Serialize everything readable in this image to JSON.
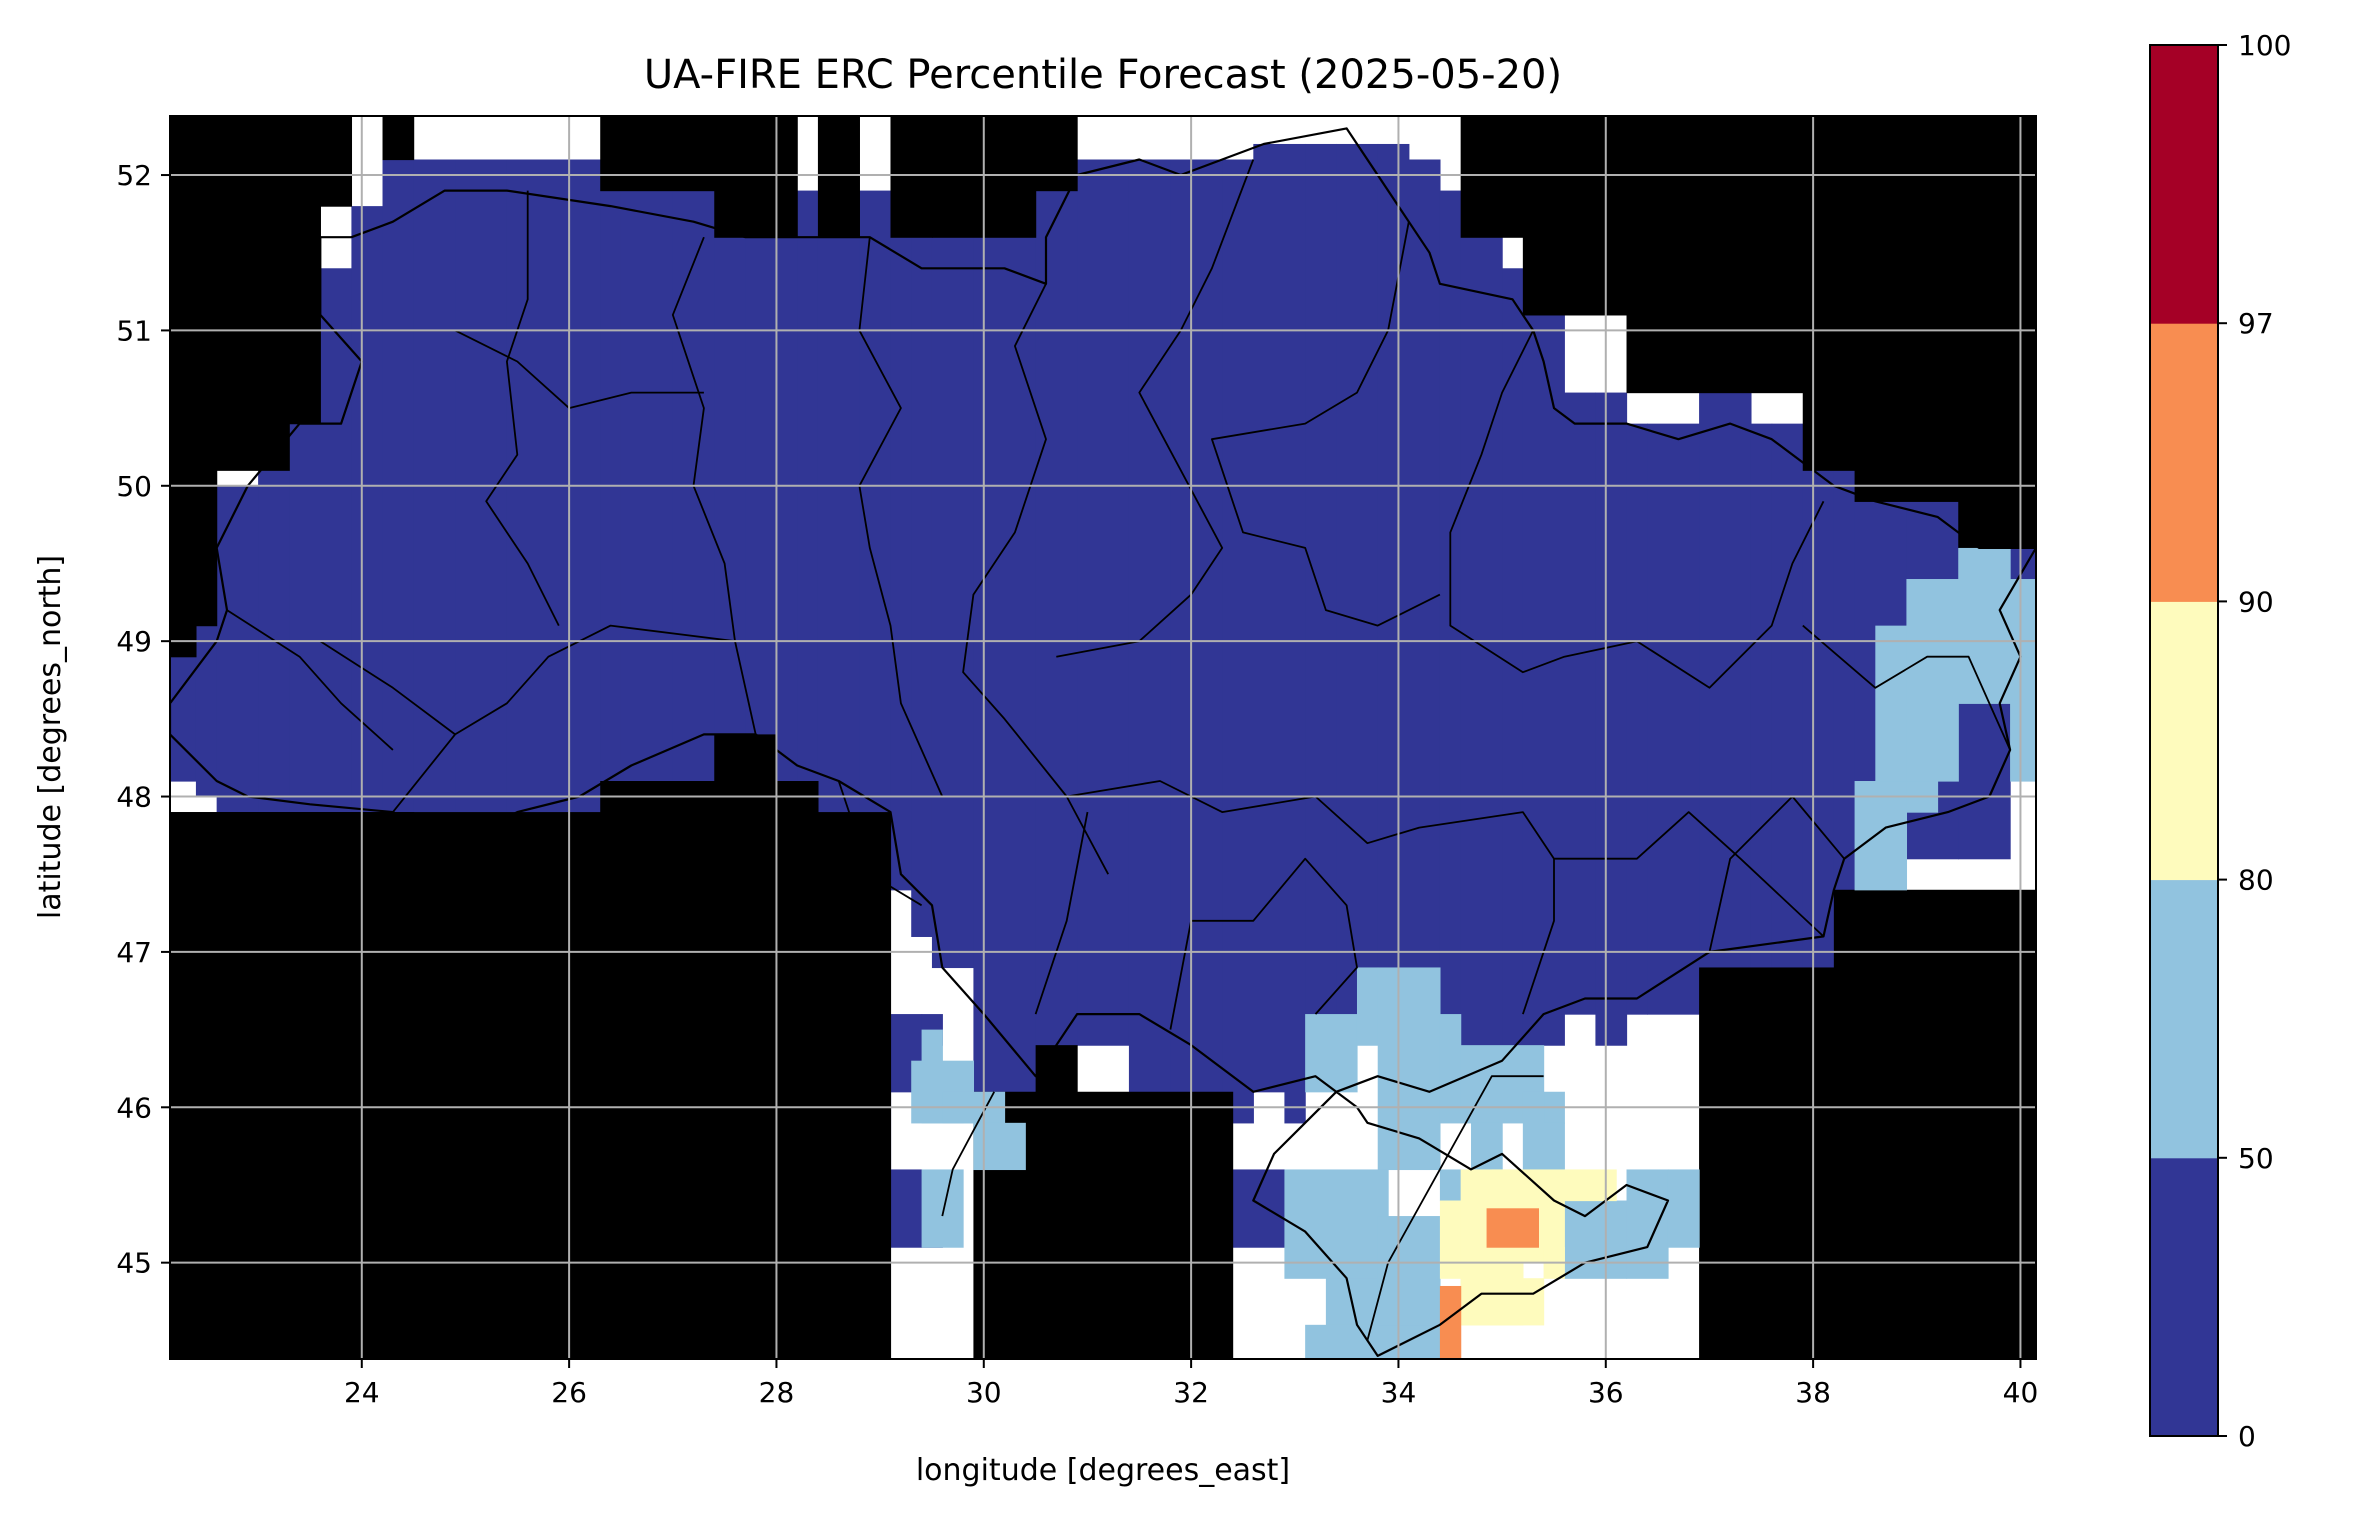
{
  "title": "UA-FIRE ERC Percentile Forecast (2025-05-20)",
  "xlabel": "longitude [degrees_east]",
  "ylabel": "latitude [degrees_north]",
  "x_range": [
    22.15,
    40.15
  ],
  "y_range": [
    44.38,
    52.38
  ],
  "x_ticks": [
    "24",
    "26",
    "28",
    "30",
    "32",
    "34",
    "36",
    "38",
    "40"
  ],
  "y_ticks": [
    "45",
    "46",
    "47",
    "48",
    "49",
    "50",
    "51",
    "52"
  ],
  "grid": true,
  "colorbar": {
    "levels": [
      "0",
      "50",
      "80",
      "90",
      "97",
      "100"
    ],
    "colors": [
      "#313695",
      "#91c3df",
      "#fefbbd",
      "#f88d51",
      "#a50026"
    ]
  },
  "chart_data": {
    "type": "heatmap",
    "title": "UA-FIRE ERC Percentile Forecast (2025-05-20)",
    "xlabel": "longitude [degrees_east]",
    "ylabel": "latitude [degrees_north]",
    "xlim": [
      22.15,
      40.15
    ],
    "ylim": [
      44.38,
      52.38
    ],
    "grid": true,
    "colorbar_levels": [
      0,
      50,
      80,
      90,
      97,
      100
    ],
    "regions": [
      {
        "percentile_class": "0-50",
        "color": "#313695",
        "extent": "most of Ukraine"
      },
      {
        "percentile_class": "50-80",
        "color": "#91c3df",
        "extent": "Crimea, Odesa coast, far east near 39-40E 48-49.6N"
      },
      {
        "percentile_class": "80-90",
        "color": "#fefbbd",
        "extent": "southern Crimea around 34.5-35.7E 44.7-45.6N"
      },
      {
        "percentile_class": "90-97",
        "color": "#f88d51",
        "extent": "small cells near 35.1E 45.25N and 34.5E 44.6N"
      },
      {
        "percentile_class": "97-100",
        "color": "#a50026",
        "extent": "none"
      }
    ]
  }
}
